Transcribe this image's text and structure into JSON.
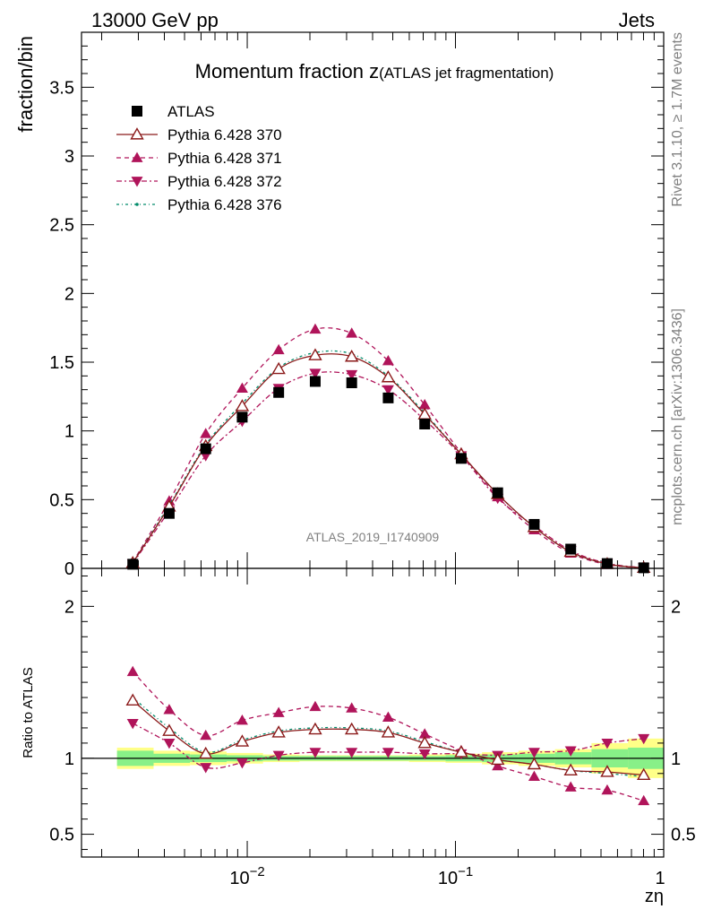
{
  "header": {
    "left": "13000 GeV pp",
    "right": "Jets"
  },
  "side": {
    "rivet": "Rivet 3.1.10, ≥ 1.7M events",
    "mcplots": "mcplots.cern.ch [arXiv:1306.3436]"
  },
  "watermark": "ATLAS_2019_I1740909",
  "colors": {
    "atlas": "#000000",
    "p370": "#8b1a1a",
    "p371": "#b0145a",
    "p372": "#b0145a",
    "p376": "#008b6a",
    "band_inner": "#88f088",
    "band_outer": "#ffff88"
  },
  "chart_data": [
    {
      "type": "line",
      "title_main": "Momentum fraction ",
      "title_var": "z",
      "title_sub": "(ATLAS jet fragmentation)",
      "ylabel": "fraction/bin",
      "xlabel": "zη",
      "xscale": "log",
      "xlim": [
        0.0016,
        1.0
      ],
      "ylim": [
        0,
        3.9
      ],
      "yticks": [
        "0",
        "0.5",
        "1",
        "1.5",
        "2",
        "2.5",
        "3",
        "3.5"
      ],
      "xticks": [
        {
          "base": "10",
          "exp": "−2"
        },
        {
          "base": "10",
          "exp": "−1"
        },
        {
          "base": "1",
          "exp": ""
        }
      ],
      "legend_position": "top-left",
      "x": [
        0.00282,
        0.00422,
        0.00632,
        0.00946,
        0.01416,
        0.02121,
        0.03175,
        0.04753,
        0.07117,
        0.10656,
        0.15955,
        0.23888,
        0.35766,
        0.53551,
        0.80177
      ],
      "series": [
        {
          "name": "ATLAS",
          "key": "atlas",
          "values": [
            0.03,
            0.4,
            0.87,
            1.1,
            1.28,
            1.36,
            1.35,
            1.24,
            1.05,
            0.8,
            0.55,
            0.32,
            0.14,
            0.035,
            0.004
          ]
        },
        {
          "name": "Pythia 6.428 370",
          "key": "p370",
          "values": [
            0.04,
            0.45,
            0.89,
            1.18,
            1.45,
            1.55,
            1.54,
            1.39,
            1.12,
            0.83,
            0.54,
            0.3,
            0.12,
            0.032,
            0.0035
          ]
        },
        {
          "name": "Pythia 6.428 371",
          "key": "p371",
          "values": [
            0.045,
            0.49,
            0.98,
            1.31,
            1.59,
            1.74,
            1.71,
            1.51,
            1.19,
            0.84,
            0.52,
            0.28,
            0.11,
            0.028,
            0.0028
          ]
        },
        {
          "name": "Pythia 6.428 372",
          "key": "p372",
          "values": [
            0.035,
            0.42,
            0.82,
            1.07,
            1.31,
            1.42,
            1.41,
            1.3,
            1.08,
            0.82,
            0.51,
            0.31,
            0.13,
            0.037,
            0.0045
          ]
        },
        {
          "name": "Pythia 6.428 376",
          "key": "p376",
          "values": [
            0.04,
            0.46,
            0.9,
            1.2,
            1.46,
            1.57,
            1.56,
            1.4,
            1.13,
            0.83,
            0.54,
            0.3,
            0.12,
            0.032,
            0.0035
          ]
        }
      ]
    },
    {
      "type": "line",
      "ylabel": "Ratio to ATLAS",
      "xscale": "log",
      "xlim": [
        0.0016,
        1.0
      ],
      "ylim": [
        0.35,
        2.25
      ],
      "yticks": [
        "0.5",
        "1",
        "2"
      ],
      "ytick_values": [
        0.5,
        1,
        2
      ],
      "x": [
        0.00282,
        0.00422,
        0.00632,
        0.00946,
        0.01416,
        0.02121,
        0.03175,
        0.04753,
        0.07117,
        0.10656,
        0.15955,
        0.23888,
        0.35766,
        0.53551,
        0.80177
      ],
      "band_edges": [
        0.00237,
        0.00355,
        0.00531,
        0.00796,
        0.01191,
        0.01783,
        0.02669,
        0.03996,
        0.05983,
        0.08957,
        0.13409,
        0.20075,
        0.30054,
        0.45,
        0.67367,
        1.0
      ],
      "band_inner": [
        0.05,
        0.03,
        0.025,
        0.02,
        0.015,
        0.015,
        0.015,
        0.015,
        0.015,
        0.02,
        0.025,
        0.03,
        0.04,
        0.06,
        0.07
      ],
      "band_outer": [
        0.07,
        0.05,
        0.045,
        0.035,
        0.025,
        0.02,
        0.02,
        0.02,
        0.025,
        0.03,
        0.04,
        0.05,
        0.06,
        0.1,
        0.13
      ],
      "series": [
        {
          "name": "Pythia 6.428 370",
          "key": "p370",
          "values": [
            1.38,
            1.18,
            1.03,
            1.11,
            1.17,
            1.19,
            1.19,
            1.17,
            1.1,
            1.04,
            0.99,
            0.96,
            0.92,
            0.91,
            0.89
          ]
        },
        {
          "name": "Pythia 6.428 371",
          "key": "p371",
          "values": [
            1.57,
            1.32,
            1.15,
            1.25,
            1.3,
            1.34,
            1.33,
            1.27,
            1.16,
            1.05,
            0.95,
            0.88,
            0.81,
            0.79,
            0.72
          ]
        },
        {
          "name": "Pythia 6.428 372",
          "key": "p372",
          "values": [
            1.23,
            1.1,
            0.94,
            0.97,
            1.02,
            1.04,
            1.04,
            1.04,
            1.03,
            1.03,
            1.02,
            1.04,
            1.05,
            1.1,
            1.13
          ]
        },
        {
          "name": "Pythia 6.428 376",
          "key": "p376",
          "values": [
            1.4,
            1.2,
            1.04,
            1.12,
            1.18,
            1.2,
            1.2,
            1.18,
            1.11,
            1.04,
            0.99,
            0.96,
            0.92,
            0.9,
            0.88
          ]
        }
      ]
    }
  ]
}
